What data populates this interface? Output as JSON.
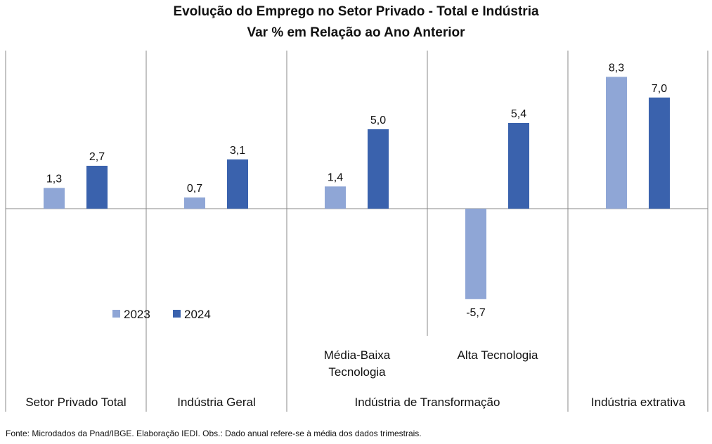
{
  "chart_data": {
    "type": "bar",
    "title": "Evolução do Emprego no Setor Privado - Total e Indústria",
    "subtitle": "Var % em Relação ao Ano Anterior",
    "categories": [
      "Setor Privado Total",
      "Indústria Geral",
      "Média-Baixa Tecnologia",
      "Alta Tecnologia",
      "Indústria extrativa"
    ],
    "groups": [
      "Setor Privado Total",
      "Indústria Geral",
      "Indústria de Transformação",
      "Indústria extrativa"
    ],
    "subcategory_labels": [
      "",
      "",
      "Média-Baixa Tecnologia",
      "Alta Tecnologia",
      ""
    ],
    "series": [
      {
        "name": "2023",
        "values": [
          1.3,
          0.7,
          1.4,
          -5.7,
          8.3
        ],
        "labels": [
          "1,3",
          "0,7",
          "1,4",
          "-5,7",
          "8,3"
        ],
        "color": "#8FA6D6"
      },
      {
        "name": "2024",
        "values": [
          2.7,
          3.1,
          5.0,
          5.4,
          7.0
        ],
        "labels": [
          "2,7",
          "3,1",
          "5,0",
          "5,4",
          "7,0"
        ],
        "color": "#3A62AD"
      }
    ],
    "legend_position": "lower-left",
    "grid": false
  },
  "footer": {
    "source": "Fonte: Microdados da Pnad/IBGE. Elaboração IEDI. Obs.: Dado anual refere-se à média dos dados trimestrais."
  }
}
